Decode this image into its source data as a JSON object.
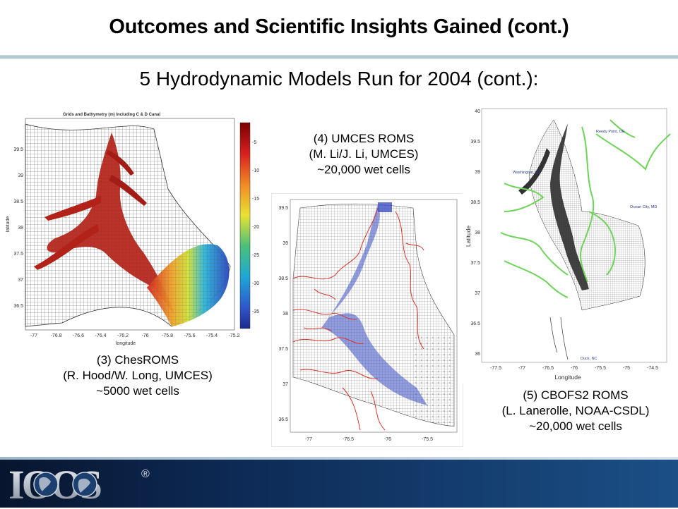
{
  "slide": {
    "title": "Outcomes and Scientific Insights Gained (cont.)",
    "subtitle": "5 Hydrodynamic Models Run for 2004 (cont.):"
  },
  "figures": [
    {
      "id": "chesroms",
      "plot_title": "Grids and Bathymetry (m) Including C & D Canal",
      "xlabel": "longitude",
      "ylabel": "latitude",
      "xticks": [
        "-77",
        "-76.8",
        "-76.6",
        "-76.4",
        "-76.2",
        "-76",
        "-75.8",
        "-75.6",
        "-75.4",
        "-75.2"
      ],
      "yticks": [
        "39.5",
        "39",
        "38.5",
        "38",
        "37.5",
        "37",
        "36.5"
      ],
      "colorbar_ticks": [
        "-5",
        "-10",
        "-15",
        "-20",
        "-25",
        "-30",
        "-35"
      ],
      "caption": [
        "(3) ChesROMS",
        "(R. Hood/W. Long, UMCES)",
        "~5000 wet cells"
      ]
    },
    {
      "id": "umces-roms",
      "xticks": [
        "-77",
        "-76.5",
        "-76",
        "-75.5"
      ],
      "yticks": [
        "39.5",
        "39",
        "38.5",
        "38",
        "37.5",
        "37",
        "36.5"
      ],
      "caption": [
        "(4) UMCES ROMS",
        "(M. Li/J. Li, UMCES)",
        "~20,000 wet cells"
      ]
    },
    {
      "id": "cbofs2",
      "xlabel": "Longitude",
      "ylabel": "Latitude",
      "xticks": [
        "-77.5",
        "-77",
        "-76.5",
        "-76",
        "-75.5",
        "-75",
        "-74.5"
      ],
      "yticks": [
        "40",
        "39.5",
        "39",
        "38.5",
        "38",
        "37.5",
        "37",
        "36.5",
        "36"
      ],
      "place_labels": [
        "Reedy Point, DE",
        "Washington, DC",
        "Ocean City, MD",
        "Duck, NC"
      ],
      "caption": [
        "(5) CBOFS2 ROMS",
        "(L. Lanerolle, NOAA-CSDL)",
        "~20,000 wet cells"
      ]
    }
  ],
  "footer": {
    "logo_text": "IOOS",
    "registered_mark": "®"
  },
  "colors": {
    "footer_dark": "#08152e",
    "footer_light": "#1b4f86",
    "grid_red": "#d9342b",
    "grid_blue": "#3b4fc4",
    "land_green": "#6fd35a"
  }
}
